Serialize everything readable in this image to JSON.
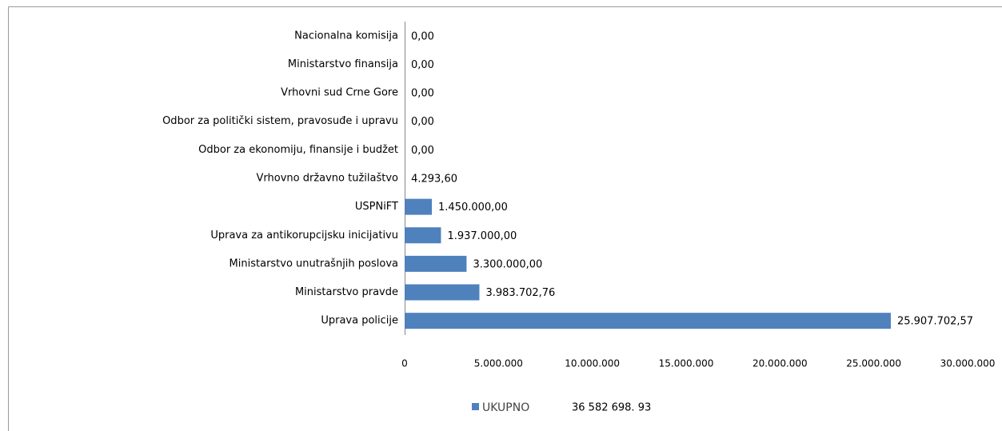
{
  "chart_data": {
    "type": "bar",
    "orientation": "horizontal",
    "categories": [
      "Nacionalna komisija",
      "Ministarstvo finansija",
      "Vrhovni sud Crne Gore",
      "Odbor za politički sistem, pravosuđe i upravu",
      "Odbor za ekonomiju, finansije i budžet",
      "Vrhovno državno tužilaštvo",
      "USPNiFT",
      "Uprava za antikorupcijsku inicijativu",
      "Ministarstvo unutrašnjih poslova",
      "Ministarstvo pravde",
      "Uprava policije"
    ],
    "series": [
      {
        "name": "UKUPNO",
        "color": "#4f81bd",
        "values": [
          0,
          0,
          0,
          0,
          0,
          4293.6,
          1450000,
          1937000,
          3300000,
          3983702.76,
          25907702.57
        ],
        "value_labels": [
          "0,00",
          "0,00",
          "0,00",
          "0,00",
          "0,00",
          "4.293,60",
          "1.450.000,00",
          "1.937.000,00",
          "3.300.000,00",
          "3.983.702,76",
          "25.907.702,57"
        ]
      }
    ],
    "xlim": [
      0,
      30000000
    ],
    "xticks": [
      0,
      {
        "value": 5000000,
        "label": "5.000.000"
      },
      {
        "value": 10000000,
        "label": "10.000.000"
      },
      {
        "value": 15000000,
        "label": "15.000.000"
      },
      {
        "value": 20000000,
        "label": "20.000.000"
      },
      {
        "value": 25000000,
        "label": "25.000.000"
      },
      {
        "value": 30000000,
        "label": "30.000.000"
      }
    ],
    "legend_position": "bottom",
    "annotation": "36 582 698. 93"
  }
}
